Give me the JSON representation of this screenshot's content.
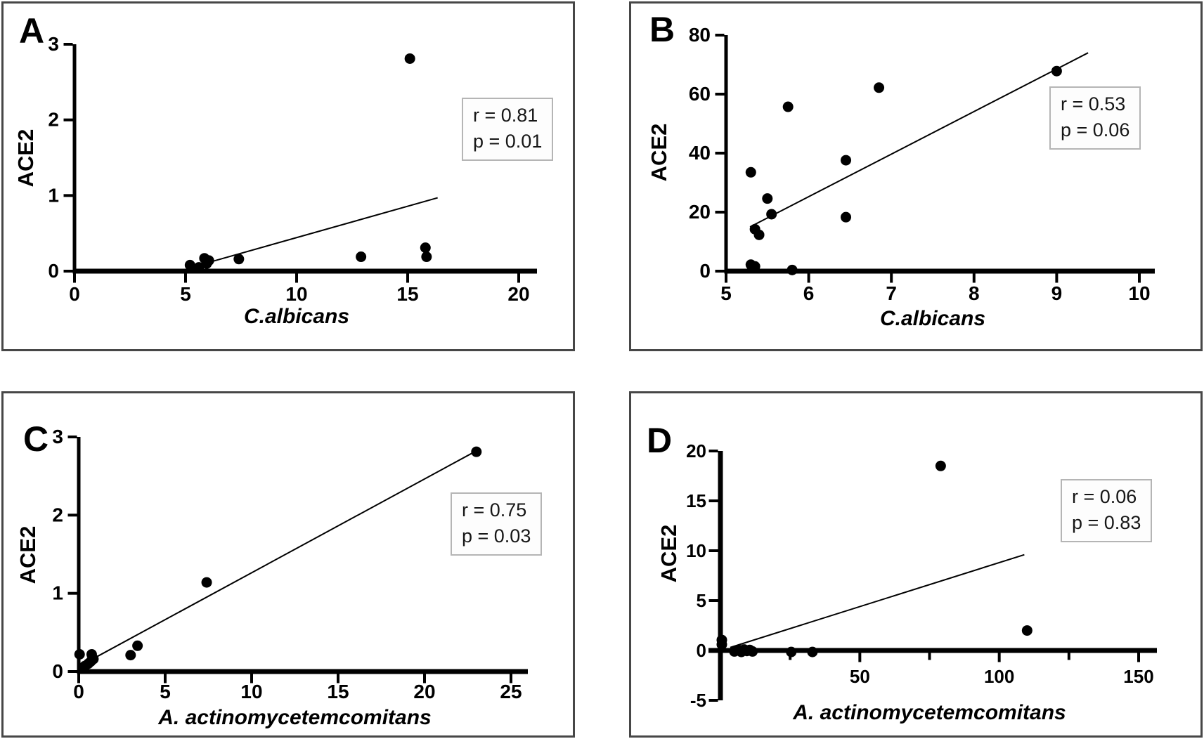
{
  "figure": {
    "background_color": "#ffffff",
    "panel_border_color": "#474747",
    "plot_color": "#000000",
    "annotation_border_color": "#b5b5b5"
  },
  "chart_data": [
    {
      "id": "A",
      "type": "scatter",
      "panel_label": "A",
      "xlabel": "C.albicans",
      "ylabel": "ACE2",
      "xlim": [
        0,
        20
      ],
      "ylim": [
        0,
        3
      ],
      "xticks": [
        0,
        5,
        10,
        15,
        20
      ],
      "yticks": [
        0,
        1,
        2,
        3
      ],
      "grid": false,
      "points": [
        [
          5.2,
          0.08
        ],
        [
          5.6,
          0.05
        ],
        [
          5.85,
          0.17
        ],
        [
          5.95,
          0.1
        ],
        [
          6.05,
          0.14
        ],
        [
          7.4,
          0.16
        ],
        [
          12.9,
          0.19
        ],
        [
          15.1,
          2.81
        ],
        [
          15.8,
          0.31
        ],
        [
          15.85,
          0.19
        ]
      ],
      "trendline": [
        [
          6.1,
          0.12
        ],
        [
          16.35,
          0.97
        ]
      ],
      "annotation": {
        "line1": "r = 0.81",
        "line2": "p = 0.01"
      }
    },
    {
      "id": "B",
      "type": "scatter",
      "panel_label": "B",
      "xlabel": "C.albicans",
      "ylabel": "ACE2",
      "xlim": [
        5,
        10
      ],
      "ylim": [
        0,
        80
      ],
      "xticks": [
        5,
        6,
        7,
        8,
        9,
        10
      ],
      "yticks": [
        0,
        20,
        40,
        60,
        80
      ],
      "grid": false,
      "points": [
        [
          5.3,
          33.5
        ],
        [
          5.3,
          2.2
        ],
        [
          5.35,
          1.6
        ],
        [
          5.35,
          14.2
        ],
        [
          5.4,
          12.3
        ],
        [
          5.5,
          24.6
        ],
        [
          5.55,
          19.3
        ],
        [
          5.75,
          55.7
        ],
        [
          5.8,
          0.4
        ],
        [
          6.45,
          37.6
        ],
        [
          6.45,
          18.3
        ],
        [
          6.85,
          62.2
        ],
        [
          9.0,
          67.8
        ]
      ],
      "trendline": [
        [
          5.29,
          15.0
        ],
        [
          9.38,
          74.0
        ]
      ],
      "annotation": {
        "line1": "r = 0.53",
        "line2": "p = 0.06"
      }
    },
    {
      "id": "C",
      "type": "scatter",
      "panel_label": "C",
      "xlabel": "A. actinomycetemcomitans",
      "ylabel": "ACE2",
      "xlim": [
        0,
        25
      ],
      "ylim": [
        0,
        3
      ],
      "xticks": [
        0,
        5,
        10,
        15,
        20,
        25
      ],
      "yticks": [
        0,
        1,
        2,
        3
      ],
      "grid": false,
      "points": [
        [
          0.05,
          0.22
        ],
        [
          0.35,
          0.07
        ],
        [
          0.55,
          0.1
        ],
        [
          0.7,
          0.13
        ],
        [
          0.75,
          0.22
        ],
        [
          0.85,
          0.16
        ],
        [
          3.0,
          0.21
        ],
        [
          3.4,
          0.33
        ],
        [
          7.4,
          1.14
        ],
        [
          23.0,
          2.81
        ]
      ],
      "trendline": [
        [
          0.8,
          0.16
        ],
        [
          23.15,
          2.84
        ]
      ],
      "annotation": {
        "line1": "r = 0.75",
        "line2": "p = 0.03"
      }
    },
    {
      "id": "D",
      "type": "scatter",
      "panel_label": "D",
      "xlabel": "A. actinomycetemcomitans",
      "ylabel": "ACE2",
      "xlim": [
        0,
        150
      ],
      "ylim": [
        -5,
        20
      ],
      "xticks": [
        50,
        100,
        150
      ],
      "xticks_minor": [
        25,
        75,
        125
      ],
      "yticks": [
        -5,
        0,
        5,
        10,
        15,
        20
      ],
      "grid": false,
      "points": [
        [
          0.5,
          1.05
        ],
        [
          0.5,
          0.6
        ],
        [
          5,
          -0.1
        ],
        [
          6.5,
          0.05
        ],
        [
          7.5,
          -0.15
        ],
        [
          8.5,
          0.1
        ],
        [
          9.5,
          -0.05
        ],
        [
          10.5,
          0.05
        ],
        [
          11.5,
          -0.1
        ],
        [
          25.4,
          -0.15
        ],
        [
          33,
          -0.15
        ],
        [
          79,
          18.5
        ],
        [
          110,
          2.0
        ]
      ],
      "trendline": [
        [
          3.5,
          0.3
        ],
        [
          109,
          9.6
        ]
      ],
      "annotation": {
        "line1": "r = 0.06",
        "line2": "p = 0.83"
      }
    }
  ]
}
